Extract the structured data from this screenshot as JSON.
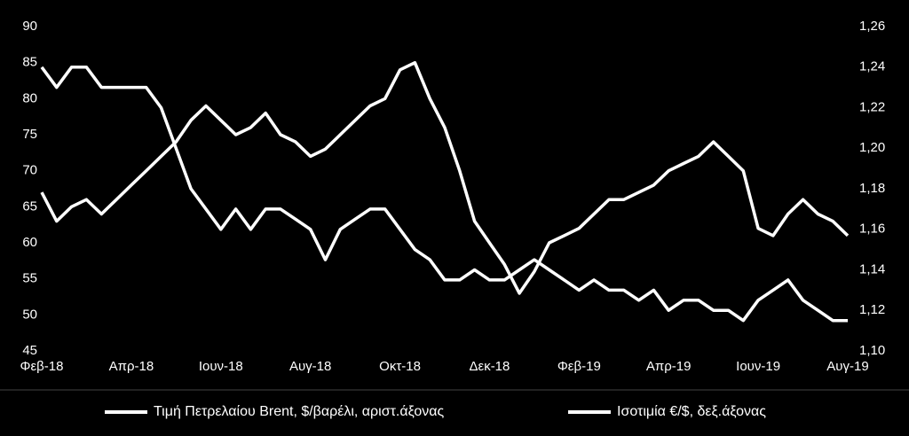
{
  "chart_data": {
    "type": "line",
    "categories": [
      "Φεβ-18",
      null,
      null,
      null,
      null,
      null,
      "Απρ-18",
      null,
      null,
      null,
      null,
      null,
      "Ιουν-18",
      null,
      null,
      null,
      null,
      null,
      "Αυγ-18",
      null,
      null,
      null,
      null,
      null,
      "Οκτ-18",
      null,
      null,
      null,
      null,
      null,
      "Δεκ-18",
      null,
      null,
      null,
      null,
      null,
      "Φεβ-19",
      null,
      null,
      null,
      null,
      null,
      "Απρ-19",
      null,
      null,
      null,
      null,
      null,
      "Ιουν-19",
      null,
      null,
      null,
      null,
      null,
      "Αυγ-19"
    ],
    "series": [
      {
        "name": "Τιμή Πετρελαίου Brent, $/βαρέλι, αριστ.άξονας",
        "color": "#ffffff",
        "axis": "y",
        "values": [
          67,
          63,
          65,
          66,
          64,
          66,
          68,
          70,
          72,
          74,
          77,
          79,
          77,
          75,
          76,
          78,
          75,
          74,
          72,
          73,
          75,
          77,
          79,
          80,
          84,
          85,
          80,
          76,
          70,
          63,
          60,
          57,
          53,
          56,
          60,
          61,
          62,
          64,
          66,
          66,
          67,
          68,
          70,
          71,
          72,
          74,
          72,
          70,
          62,
          61,
          64,
          66,
          64,
          63,
          61
        ]
      },
      {
        "name": "Ισοτιμία €/$, δεξ.άξονας",
        "color": "#ffffff",
        "axis": "y2",
        "values": [
          1.24,
          1.23,
          1.24,
          1.24,
          1.23,
          1.23,
          1.23,
          1.23,
          1.22,
          1.2,
          1.18,
          1.17,
          1.16,
          1.17,
          1.16,
          1.17,
          1.17,
          1.165,
          1.16,
          1.145,
          1.16,
          1.165,
          1.17,
          1.17,
          1.16,
          1.15,
          1.145,
          1.135,
          1.135,
          1.14,
          1.135,
          1.135,
          1.14,
          1.145,
          1.14,
          1.135,
          1.13,
          1.135,
          1.13,
          1.13,
          1.125,
          1.13,
          1.12,
          1.125,
          1.125,
          1.12,
          1.12,
          1.115,
          1.125,
          1.13,
          1.135,
          1.125,
          1.12,
          1.115,
          1.115
        ]
      }
    ],
    "ylim": [
      45,
      90
    ],
    "yticks": [
      45,
      50,
      55,
      60,
      65,
      70,
      75,
      80,
      85,
      90
    ],
    "y2lim": [
      1.1,
      1.26
    ],
    "y2ticks": [
      {
        "value": 1.1,
        "label": "1,10"
      },
      {
        "value": 1.12,
        "label": "1,12"
      },
      {
        "value": 1.14,
        "label": "1,14"
      },
      {
        "value": 1.16,
        "label": "1,16"
      },
      {
        "value": 1.18,
        "label": "1,18"
      },
      {
        "value": 1.2,
        "label": "1,20"
      },
      {
        "value": 1.22,
        "label": "1,22"
      },
      {
        "value": 1.24,
        "label": "1,24"
      },
      {
        "value": 1.26,
        "label": "1,26"
      }
    ],
    "grid": false,
    "legend": "bottom"
  }
}
